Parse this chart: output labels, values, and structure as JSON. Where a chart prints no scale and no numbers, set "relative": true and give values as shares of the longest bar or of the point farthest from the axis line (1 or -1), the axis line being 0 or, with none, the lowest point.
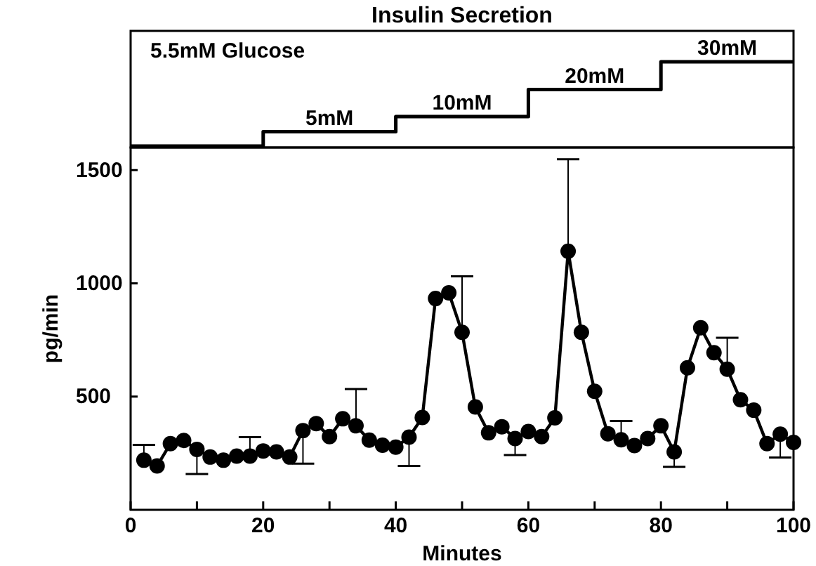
{
  "chart_data": [
    {
      "type": "step",
      "title": "Insulin Secretion",
      "relative": true,
      "x": [
        0,
        20,
        40,
        60,
        80,
        100
      ],
      "values": [
        0,
        0.17,
        0.35,
        0.67,
        1,
        1
      ],
      "color": "#000000",
      "xlim": [
        0,
        100
      ],
      "annotations": [
        "5.5mM Glucose",
        {
          "text": "5mM",
          "x": 30,
          "y": 0.17
        },
        {
          "text": "10mM",
          "x": 50,
          "y": 0.35
        },
        {
          "text": "20mM",
          "x": 70,
          "y": 0.67
        },
        {
          "text": "30mM",
          "x": 90,
          "y": 1
        }
      ]
    },
    {
      "type": "line",
      "xlabel": "Minutes",
      "ylabel": "pg/min",
      "marker": "circle",
      "color": "#000000",
      "xlim": [
        0,
        100
      ],
      "ylim": [
        0,
        1600
      ],
      "xticks": [
        0,
        {
          "value": 10,
          "label": null
        },
        20,
        {
          "value": 30,
          "label": null
        },
        40,
        {
          "value": 50,
          "label": null
        },
        60,
        {
          "value": 70,
          "label": null
        },
        80,
        {
          "value": 90,
          "label": null
        },
        100
      ],
      "yticks": [
        500,
        1000,
        1500
      ],
      "x": [
        2,
        4,
        6,
        8,
        10,
        12,
        14,
        16,
        18,
        20,
        22,
        24,
        26,
        28,
        30,
        32,
        34,
        36,
        38,
        40,
        42,
        44,
        46,
        48,
        50,
        52,
        54,
        56,
        58,
        60,
        62,
        64,
        66,
        68,
        70,
        72,
        74,
        76,
        78,
        80,
        82,
        84,
        86,
        88,
        90,
        92,
        94,
        96,
        98,
        100
      ],
      "values": [
        219,
        194,
        292,
        306,
        267,
        233,
        219,
        237,
        237,
        260,
        256,
        233,
        350,
        381,
        323,
        402,
        371,
        308,
        285,
        277,
        321,
        408,
        933,
        958,
        784,
        454,
        340,
        367,
        315,
        346,
        323,
        406,
        1142,
        784,
        523,
        336,
        309,
        284,
        315,
        371,
        256,
        627,
        804,
        694,
        621,
        486,
        440,
        292,
        334,
        298
      ],
      "errors": [
        [
          219,
          287
        ],
        null,
        null,
        null,
        [
          158,
          267
        ],
        null,
        null,
        null,
        [
          237,
          321
        ],
        null,
        null,
        null,
        [
          204,
          350
        ],
        null,
        null,
        null,
        [
          371,
          533
        ],
        null,
        null,
        null,
        [
          194,
          321
        ],
        null,
        null,
        null,
        [
          784,
          1031
        ],
        null,
        null,
        null,
        [
          242,
          315
        ],
        null,
        null,
        null,
        [
          1142,
          1548
        ],
        null,
        null,
        null,
        [
          309,
          392
        ],
        null,
        null,
        null,
        [
          190,
          256
        ],
        null,
        null,
        null,
        [
          621,
          760
        ],
        null,
        null,
        null,
        [
          231,
          334
        ],
        null
      ]
    }
  ]
}
